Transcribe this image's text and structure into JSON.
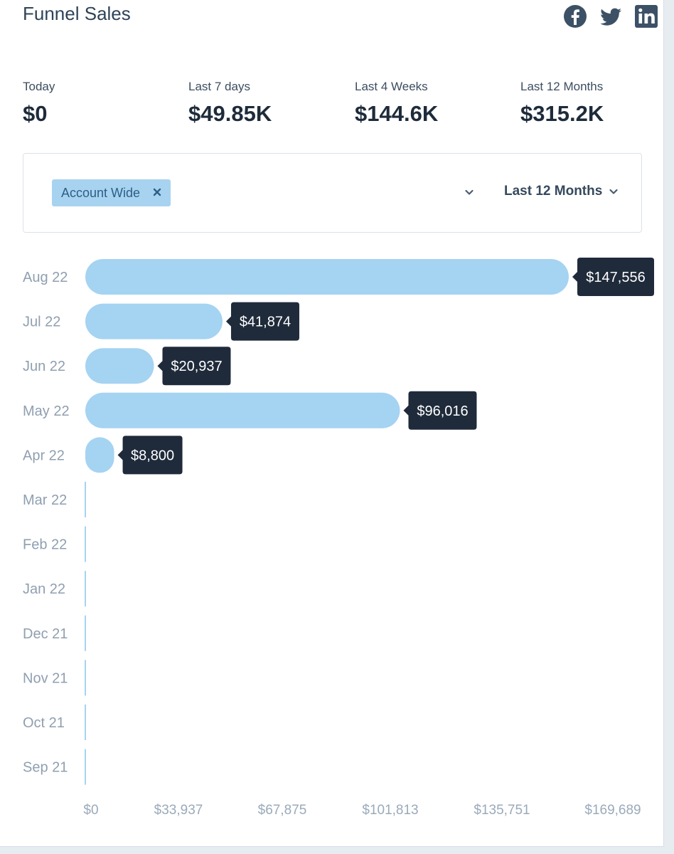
{
  "header": {
    "title": "Funnel Sales",
    "social": [
      "facebook-icon",
      "twitter-icon",
      "linkedin-icon"
    ]
  },
  "stats": [
    {
      "label": "Today",
      "value": "$0"
    },
    {
      "label": "Last 7 days",
      "value": "$49.85K"
    },
    {
      "label": "Last 4 Weeks",
      "value": "$144.6K"
    },
    {
      "label": "Last 12 Months",
      "value": "$315.2K"
    }
  ],
  "filters": {
    "tag_label": "Account Wide",
    "period_label": "Last 12 Months"
  },
  "colors": {
    "bar": "#a5d3f2",
    "tooltip": "#1f2b3b",
    "tag": "#a7d3f0",
    "social": "#3c5166"
  },
  "chart_data": {
    "type": "bar",
    "orientation": "horizontal",
    "categories": [
      "Aug 22",
      "Jul 22",
      "Jun 22",
      "May 22",
      "Apr 22",
      "Mar 22",
      "Feb 22",
      "Jan 22",
      "Dec 21",
      "Nov 21",
      "Oct 21",
      "Sep 21"
    ],
    "values": [
      147556,
      41874,
      20937,
      96016,
      8800,
      0,
      0,
      0,
      0,
      0,
      0,
      0
    ],
    "value_labels": [
      "$147,556",
      "$41,874",
      "$20,937",
      "$96,016",
      "$8,800",
      "",
      "",
      "",
      "",
      "",
      "",
      ""
    ],
    "x_ticks": [
      "$0",
      "$33,937",
      "$67,875",
      "$101,813",
      "$135,751",
      "$169,689"
    ],
    "xlim": [
      0,
      169689
    ],
    "title": "Funnel Sales",
    "grid": false
  }
}
